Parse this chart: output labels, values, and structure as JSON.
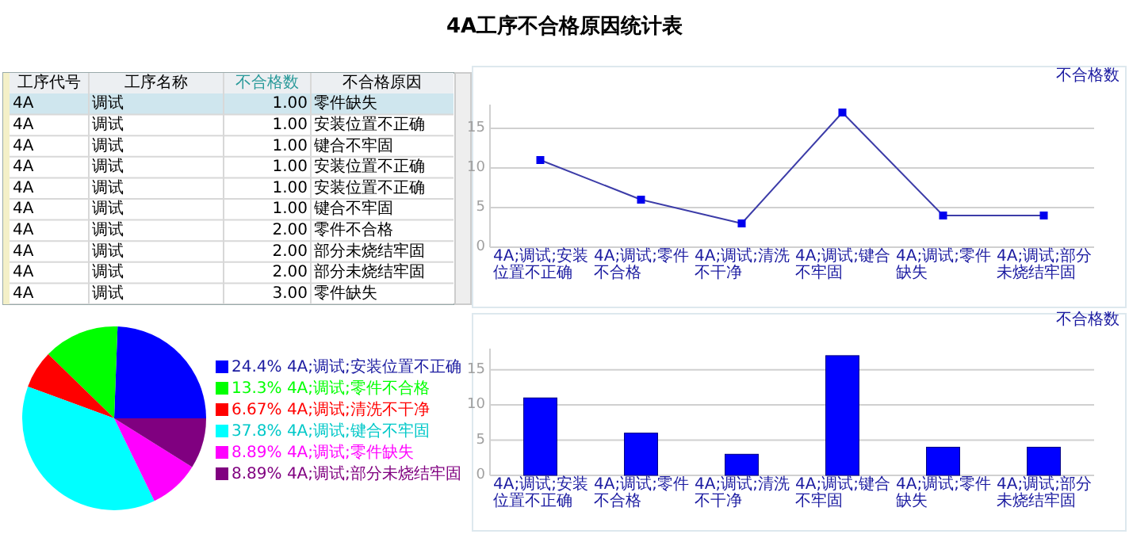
{
  "chart_data": [
    {
      "type": "other",
      "title": "4A工序不合格原因统计表",
      "categories": [
        "工序代号",
        "工序名称",
        "不合格数",
        "不合格原因"
      ],
      "cell_labels": [
        [
          "4A",
          "调试",
          "1.00",
          "零件缺失"
        ],
        [
          "4A",
          "调试",
          "1.00",
          "安装位置不正确"
        ],
        [
          "4A",
          "调试",
          "1.00",
          "键合不牢固"
        ],
        [
          "4A",
          "调试",
          "1.00",
          "安装位置不正确"
        ],
        [
          "4A",
          "调试",
          "1.00",
          "安装位置不正确"
        ],
        [
          "4A",
          "调试",
          "1.00",
          "键合不牢固"
        ],
        [
          "4A",
          "调试",
          "2.00",
          "零件不合格"
        ],
        [
          "4A",
          "调试",
          "2.00",
          "部分未烧结牢固"
        ],
        [
          "4A",
          "调试",
          "2.00",
          "部分未烧结牢固"
        ],
        [
          "4A",
          "调试",
          "3.00",
          "零件缺失"
        ]
      ]
    },
    {
      "type": "line",
      "categories": [
        "4A;调试;安装位置不正确",
        "4A;调试;零件不合格",
        "4A;调试;清洗不干净",
        "4A;调试;键合不牢固",
        "4A;调试;零件缺失",
        "4A;调试;部分未烧结牢固"
      ],
      "series": [
        {
          "name": "不合格数",
          "color": "#3c3ca8",
          "values": [
            11,
            6,
            3,
            17,
            4,
            4
          ]
        }
      ],
      "marker": "square",
      "ylim": [
        0,
        18
      ],
      "yticks": [
        0,
        5,
        10,
        15
      ],
      "grid": "y",
      "legend": "top right"
    },
    {
      "type": "pie",
      "categories": [
        "24.4% 4A;调试;安装位置不正确",
        "13.3% 4A;调试;零件不合格",
        "6.67% 4A;调试;清洗不干净",
        "37.8% 4A;调试;键合不牢固",
        "8.89% 4A;调试;零件缺失",
        "8.89% 4A;调试;部分未烧结牢固"
      ],
      "values": [
        24.4,
        13.3,
        6.67,
        37.8,
        8.89,
        8.89
      ],
      "colors": [
        "#0000ff",
        "#00ff00",
        "#ff0000",
        "#00ffff",
        "#ff00ff",
        "#800080"
      ],
      "legend": "right"
    },
    {
      "type": "bar",
      "categories": [
        "4A;调试;安装位置不正确",
        "4A;调试;零件不合格",
        "4A;调试;清洗不干净",
        "4A;调试;键合不牢固",
        "4A;调试;零件缺失",
        "4A;调试;部分未烧结牢固"
      ],
      "series": [
        {
          "name": "不合格数",
          "color": "#0000ff",
          "values": [
            11,
            6,
            3,
            17,
            4,
            4
          ]
        }
      ],
      "ylim": [
        0,
        18
      ],
      "yticks": [
        0,
        5,
        10,
        15
      ],
      "grid": "y",
      "legend": "top right"
    }
  ]
}
